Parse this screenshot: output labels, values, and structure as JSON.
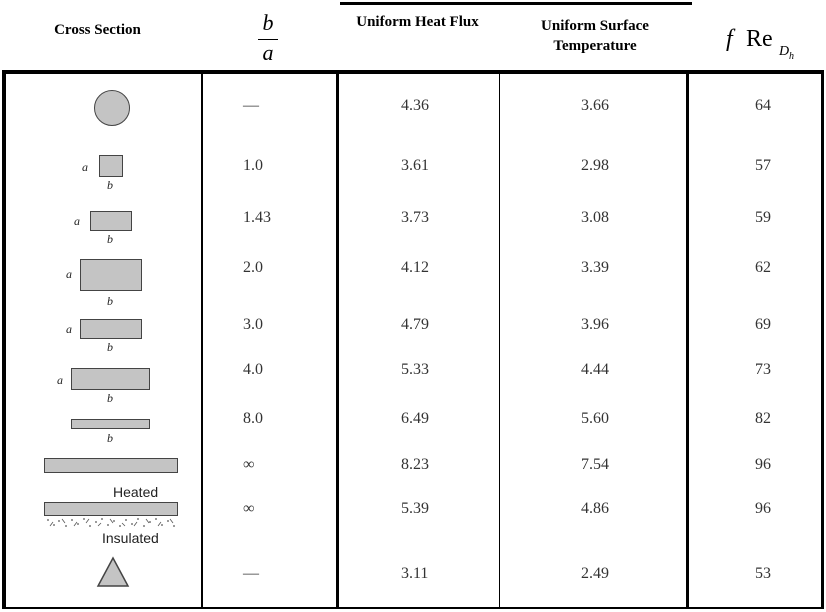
{
  "header": {
    "cross_section": "Cross Section",
    "ratio_num": "b",
    "ratio_den": "a",
    "heat_flux": "Uniform Heat Flux",
    "surface_temp_line1": "Uniform Surface",
    "surface_temp_line2": "Temperature",
    "fre_f": "f",
    "fre_re": "Re",
    "fre_sub": "D",
    "fre_subsub": "h"
  },
  "rows": [
    {
      "ratio": "—",
      "heat_flux": "4.36",
      "surface_temp": "3.66",
      "fre": "64"
    },
    {
      "ratio": "1.0",
      "heat_flux": "3.61",
      "surface_temp": "2.98",
      "fre": "57"
    },
    {
      "ratio": "1.43",
      "heat_flux": "3.73",
      "surface_temp": "3.08",
      "fre": "59"
    },
    {
      "ratio": "2.0",
      "heat_flux": "4.12",
      "surface_temp": "3.39",
      "fre": "62"
    },
    {
      "ratio": "3.0",
      "heat_flux": "4.79",
      "surface_temp": "3.96",
      "fre": "69"
    },
    {
      "ratio": "4.0",
      "heat_flux": "5.33",
      "surface_temp": "4.44",
      "fre": "73"
    },
    {
      "ratio": "8.0",
      "heat_flux": "6.49",
      "surface_temp": "5.60",
      "fre": "82"
    },
    {
      "ratio": "∞",
      "heat_flux": "8.23",
      "surface_temp": "7.54",
      "fre": "96"
    },
    {
      "ratio": "∞",
      "heat_flux": "5.39",
      "surface_temp": "4.86",
      "fre": "96"
    },
    {
      "ratio": "—",
      "heat_flux": "3.11",
      "surface_temp": "2.49",
      "fre": "53"
    }
  ],
  "shape_labels": {
    "a": "a",
    "b": "b",
    "heated": "Heated",
    "insulated": "Insulated"
  },
  "colors": {
    "shape_fill": "#c4c4c4",
    "shape_border": "#444444",
    "rule": "#000000"
  }
}
